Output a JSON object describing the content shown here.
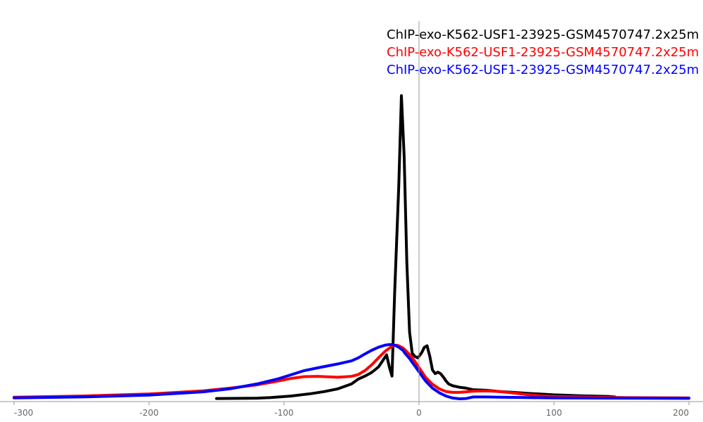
{
  "chart_data": {
    "type": "line",
    "title": "",
    "xlabel": "",
    "ylabel": "",
    "xlim": [
      -300,
      200
    ],
    "ylim": [
      0,
      100
    ],
    "x_ticks": [
      -300,
      -200,
      -100,
      0,
      100,
      200
    ],
    "x_tick_labels": [
      "-300",
      "-200",
      "-100",
      "0",
      "100",
      "200"
    ],
    "y_ticks_visible": false,
    "grid": false,
    "vertical_reference_line_x": 0,
    "legend_position": "top-right",
    "series": [
      {
        "name": "ChIP-exo-K562-USF1-23925-GSM4570747.2x25m",
        "color": "#000000",
        "x": [
          -150,
          -120,
          -110,
          -95,
          -80,
          -70,
          -60,
          -50,
          -45,
          -40,
          -35,
          -30,
          -27,
          -24,
          -22,
          -20,
          -18,
          -15,
          -13,
          -11,
          -9,
          -7,
          -5,
          -3,
          -1,
          0,
          2,
          4,
          6,
          8,
          10,
          12,
          14,
          16,
          18,
          20,
          22,
          25,
          30,
          35,
          40,
          50,
          60,
          70,
          80,
          100,
          120,
          140,
          145
        ],
        "values": [
          0.1,
          0.2,
          0.4,
          0.9,
          1.7,
          2.4,
          3.3,
          4.9,
          6.5,
          7.5,
          8.7,
          10.5,
          12.5,
          14.5,
          10.5,
          7.5,
          35,
          70,
          100,
          80,
          45,
          22,
          15,
          14,
          13.5,
          14.0,
          15.2,
          17.0,
          17.5,
          14,
          9.5,
          8.3,
          8.8,
          8.3,
          7.2,
          5.9,
          4.9,
          4.3,
          3.8,
          3.5,
          3.0,
          2.8,
          2.4,
          2.1,
          1.8,
          1.3,
          1.0,
          0.8,
          0.6
        ]
      },
      {
        "name": "ChIP-exo-K562-USF1-23925-GSM4570747.2x25m",
        "color": "#ff0000",
        "x": [
          -300,
          -250,
          -200,
          -160,
          -140,
          -120,
          -105,
          -95,
          -85,
          -75,
          -60,
          -50,
          -45,
          -40,
          -35,
          -30,
          -25,
          -20,
          -17,
          -15,
          -12,
          -10,
          -7,
          -5,
          -3,
          0,
          3,
          5,
          10,
          15,
          20,
          25,
          30,
          40,
          50,
          60,
          70,
          80,
          90,
          100,
          120,
          150,
          200
        ],
        "values": [
          0.5,
          0.9,
          1.6,
          2.6,
          3.5,
          4.6,
          5.8,
          6.7,
          7.3,
          7.4,
          7.1,
          7.4,
          8.0,
          9.3,
          11.2,
          13.5,
          15.7,
          17.3,
          17.7,
          17.5,
          16.8,
          16.0,
          14.6,
          13.5,
          12.3,
          10.3,
          8.3,
          7.0,
          4.8,
          3.3,
          2.4,
          2.1,
          2.1,
          2.5,
          2.6,
          2.4,
          1.9,
          1.4,
          1.0,
          0.8,
          0.6,
          0.4,
          0.3
        ]
      },
      {
        "name": "ChIP-exo-K562-USF1-23925-GSM4570747.2x25m",
        "color": "#0000ff",
        "x": [
          -300,
          -250,
          -200,
          -160,
          -140,
          -120,
          -105,
          -95,
          -85,
          -75,
          -60,
          -50,
          -45,
          -40,
          -35,
          -30,
          -25,
          -22,
          -20,
          -17,
          -15,
          -12,
          -10,
          -7,
          -5,
          -3,
          0,
          3,
          5,
          10,
          15,
          20,
          25,
          30,
          35,
          40,
          50,
          60,
          80,
          100,
          150,
          200
        ],
        "values": [
          0.3,
          0.6,
          1.2,
          2.3,
          3.3,
          4.9,
          6.5,
          7.9,
          9.3,
          10.2,
          11.5,
          12.5,
          13.5,
          14.8,
          16.0,
          17.0,
          17.7,
          17.9,
          17.9,
          17.5,
          17.0,
          16.0,
          14.8,
          13.3,
          12.0,
          10.8,
          8.9,
          7.0,
          5.8,
          3.5,
          2.0,
          0.9,
          0.25,
          0,
          0.1,
          0.6,
          0.6,
          0.5,
          0.4,
          0.3,
          0.2,
          0.15
        ]
      }
    ]
  }
}
